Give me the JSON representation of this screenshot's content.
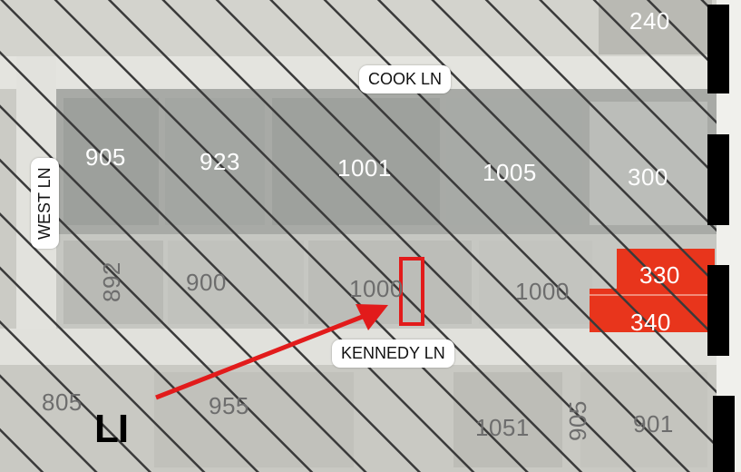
{
  "streets": {
    "cook": "COOK LN",
    "west": "WEST LN",
    "kennedy": "KENNEDY LN"
  },
  "parcels": {
    "p240": "240",
    "p905_top": "905",
    "p923": "923",
    "p1001": "1001",
    "p1005": "1005",
    "p300": "300",
    "p892": "892",
    "p900": "900",
    "p1000_a": "1000",
    "p1000_b": "1000",
    "p330": "330",
    "p340": "340",
    "p805": "805",
    "p955": "955",
    "p1051": "1051",
    "p905_bottom": "905",
    "p901": "901"
  },
  "zoning": {
    "label": "LI"
  },
  "colors": {
    "highlight_red": "#e8351c",
    "marker_outline": "#e21b1b",
    "hatch_line": "#3a3a3a",
    "street_label_bg": "#ffffff",
    "boundary_black": "#000000"
  },
  "icons": {
    "pointer": "red-arrow-icon",
    "target": "red-rectangle-marker"
  }
}
